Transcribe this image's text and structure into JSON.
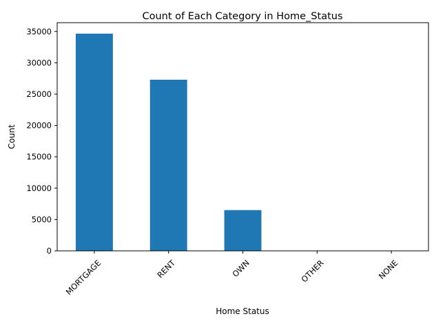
{
  "chart_data": {
    "type": "bar",
    "title": "Count of Each Category in Home_Status",
    "xlabel": "Home Status",
    "ylabel": "Count",
    "categories": [
      "MORTGAGE",
      "RENT",
      "OWN",
      "OTHER",
      "NONE"
    ],
    "values": [
      34650,
      27300,
      6500,
      30,
      10
    ],
    "ylim": [
      0,
      36400
    ],
    "yticks": [
      0,
      5000,
      10000,
      15000,
      20000,
      25000,
      30000,
      35000
    ],
    "ytick_labels": [
      "0",
      "5000",
      "10000",
      "15000",
      "20000",
      "25000",
      "30000",
      "35000"
    ],
    "grid": false,
    "bar_color": "#1f77b4"
  }
}
